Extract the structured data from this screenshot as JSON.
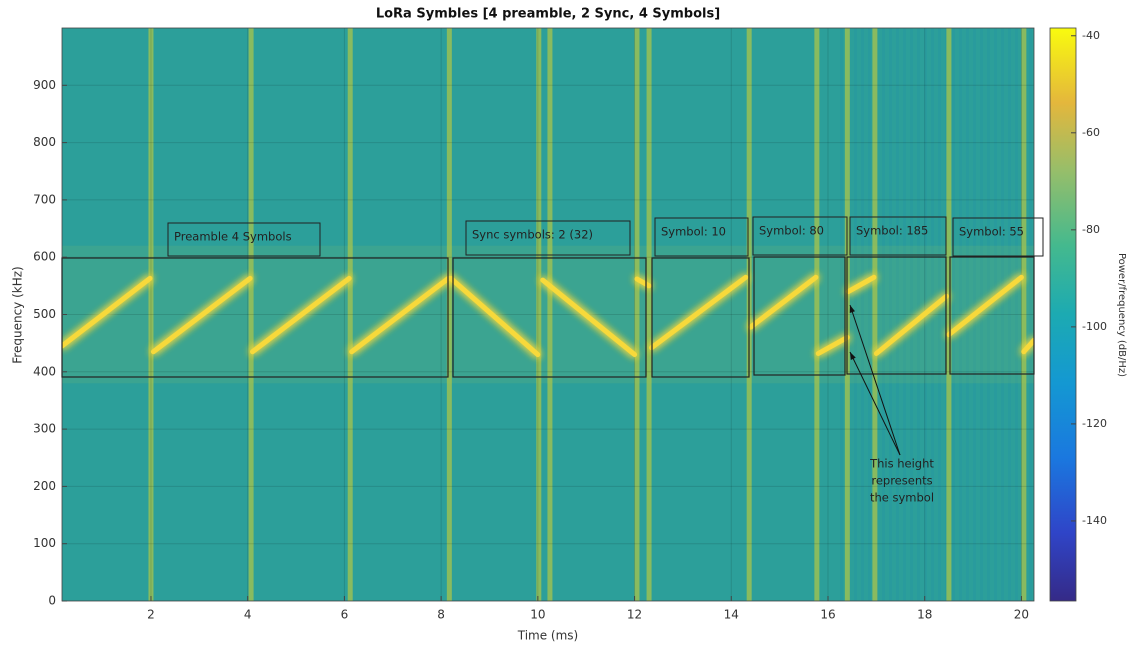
{
  "chart_data": {
    "type": "spectrogram",
    "title": "LoRa Symbles [4 preamble, 2 Sync, 4 Symbols]",
    "xlabel": "Time (ms)",
    "ylabel": "Frequency (kHz)",
    "xlim": [
      0.16,
      20.26
    ],
    "ylim": [
      0,
      1000
    ],
    "xticks": [
      2,
      4,
      6,
      8,
      10,
      12,
      14,
      16,
      18,
      20
    ],
    "yticks": [
      0,
      100,
      200,
      300,
      400,
      500,
      600,
      700,
      800,
      900
    ],
    "grid": true,
    "background_color": "#2c9f9a",
    "chirp": {
      "color": "#f7d93a",
      "x": [
        0.16,
        1.98,
        null,
        2.05,
        4.05,
        null,
        4.1,
        6.1,
        null,
        6.15,
        8.15,
        null,
        8.2,
        10.0,
        null,
        10.1,
        12.0,
        null,
        12.05,
        12.3,
        null,
        12.35,
        14.3,
        null,
        14.4,
        15.75,
        null,
        15.8,
        16.4,
        null,
        16.42,
        16.95,
        null,
        17.0,
        18.45,
        null,
        18.5,
        20.0,
        null,
        20.05,
        20.26
      ],
      "y": [
        445,
        563,
        null,
        435,
        563,
        null,
        435,
        563,
        null,
        435,
        563,
        null,
        563,
        430,
        null,
        560,
        430,
        null,
        562,
        550,
        null,
        442,
        565,
        null,
        478,
        565,
        null,
        432,
        460,
        null,
        540,
        565,
        null,
        432,
        532,
        null,
        465,
        565,
        null,
        435,
        455
      ]
    },
    "transients": {
      "color": "#a9c54c",
      "x": [
        2.0,
        4.07,
        6.12,
        8.17,
        10.02,
        10.25,
        12.05,
        12.3,
        14.37,
        15.77,
        16.4,
        16.97,
        18.5,
        20.05
      ]
    },
    "colorbar": {
      "clim": [
        -156.5,
        -38.4
      ],
      "ticks": [
        -40,
        -60,
        -80,
        -100,
        -120,
        -140
      ],
      "label": "Power/frequency (dB/Hz)"
    },
    "annotations": [
      "Preamble 4 Symbols",
      "Sync symbols: 2 (32)",
      "Symbol: 10",
      "Symbol: 80",
      "Symbol: 185",
      "Symbol: 55"
    ],
    "note": [
      "This height",
      "represents",
      "the symbol"
    ]
  }
}
